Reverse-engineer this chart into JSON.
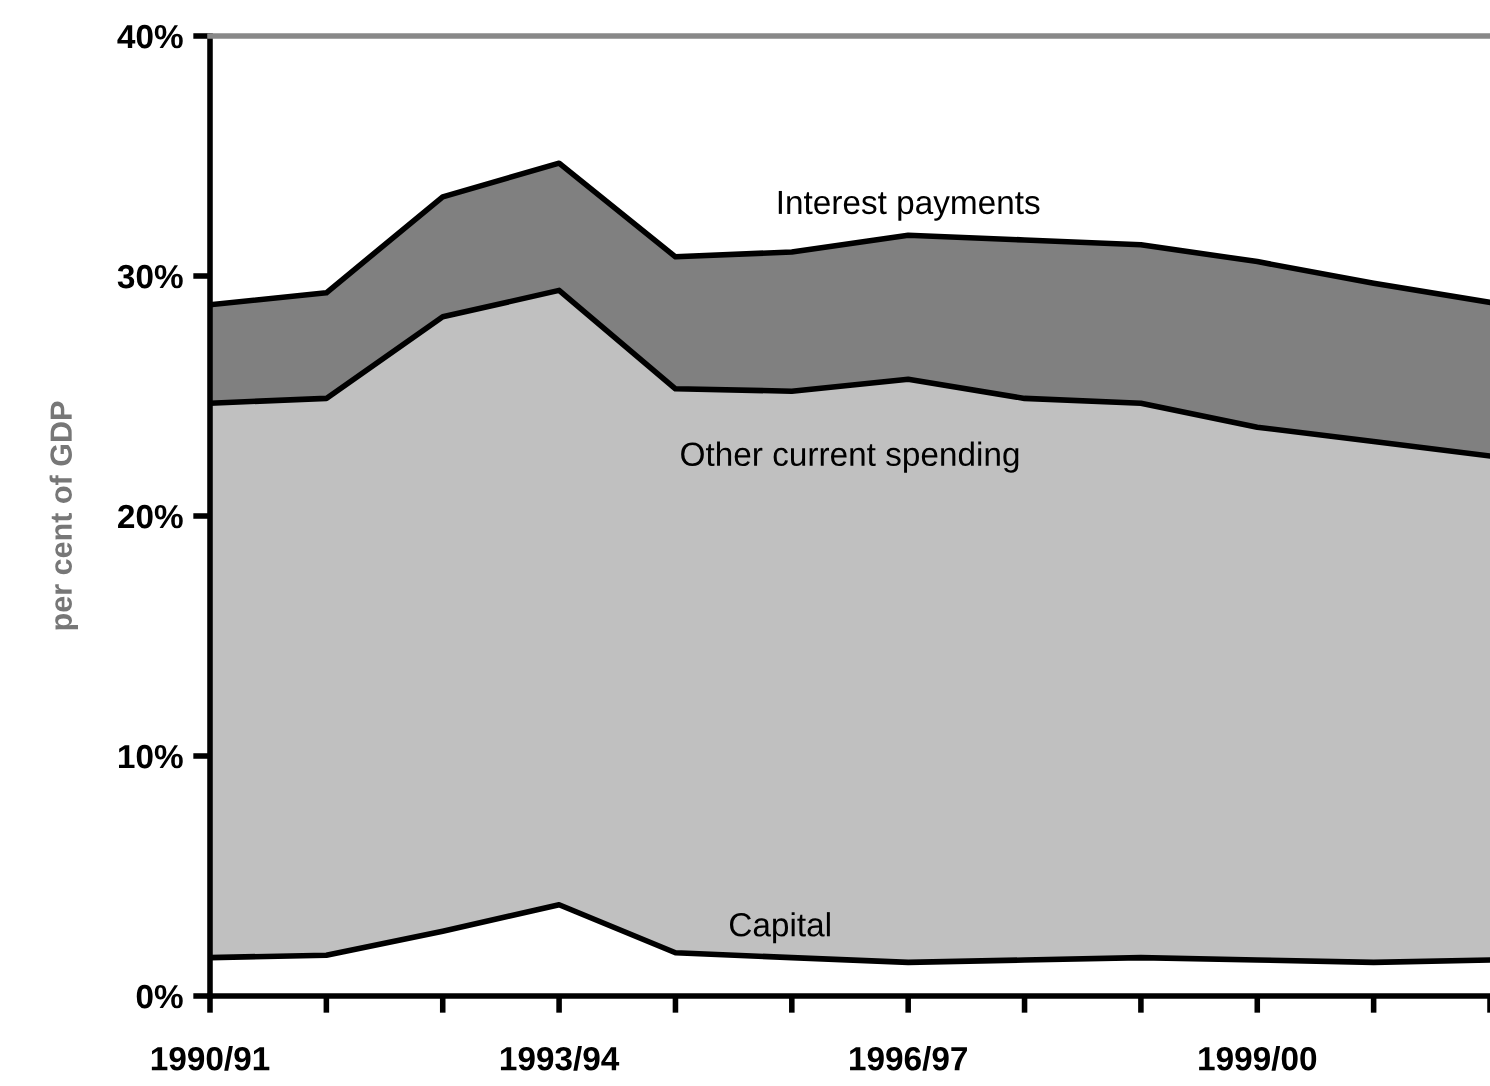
{
  "chart_data": {
    "type": "area",
    "stacked": true,
    "ylabel": "per cent of GDP",
    "categories": [
      "1990/91",
      null,
      null,
      "1993/94",
      null,
      null,
      "1996/97",
      null,
      null,
      "1999/00",
      null,
      null
    ],
    "series": [
      {
        "name": "Capital",
        "color": "#ffffff",
        "values": [
          1.6,
          1.7,
          2.7,
          3.8,
          1.8,
          1.6,
          1.4,
          1.5,
          1.6,
          1.5,
          1.4,
          1.5
        ]
      },
      {
        "name": "Other current spending",
        "color": "#c0c0c0",
        "values": [
          23.1,
          23.2,
          25.6,
          25.6,
          23.5,
          23.6,
          24.3,
          23.4,
          23.1,
          22.2,
          21.7,
          21.0
        ]
      },
      {
        "name": "Interest payments",
        "color": "#808080",
        "values": [
          4.1,
          4.4,
          5.0,
          5.3,
          5.5,
          5.8,
          6.0,
          6.6,
          6.6,
          6.9,
          6.6,
          6.4
        ]
      }
    ],
    "ylim": [
      0,
      40
    ],
    "yticks": [
      {
        "value": 0,
        "label": "0%"
      },
      {
        "value": 10,
        "label": "10%"
      },
      {
        "value": 20,
        "label": "20%"
      },
      {
        "value": 30,
        "label": "30%"
      },
      {
        "value": 40,
        "label": "40%"
      }
    ],
    "grid": false,
    "legend": false
  }
}
